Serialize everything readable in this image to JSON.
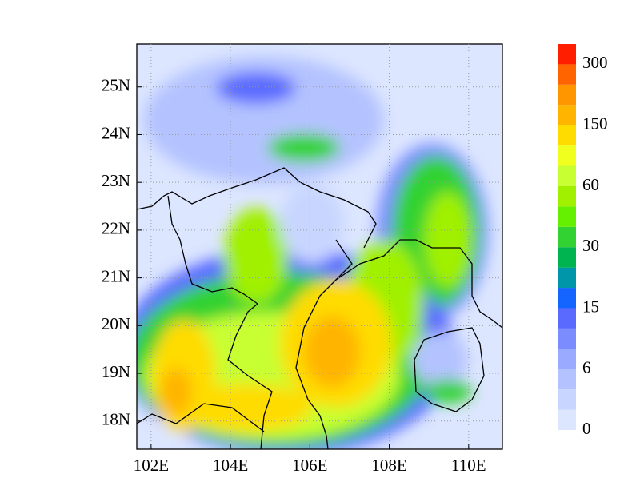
{
  "map": {
    "xaxis": {
      "lim": [
        101.64,
        110.85
      ],
      "ticks": [
        {
          "value": 102,
          "label": "102E"
        },
        {
          "value": 104,
          "label": "104E"
        },
        {
          "value": 106,
          "label": "106E"
        },
        {
          "value": 108,
          "label": "108E"
        },
        {
          "value": 110,
          "label": "110E"
        }
      ]
    },
    "yaxis": {
      "lim": [
        17.41,
        25.9
      ],
      "ticks": [
        {
          "value": 18,
          "label": "18N"
        },
        {
          "value": 19,
          "label": "19N"
        },
        {
          "value": 20,
          "label": "20N"
        },
        {
          "value": 21,
          "label": "21N"
        },
        {
          "value": 22,
          "label": "22N"
        },
        {
          "value": 23,
          "label": "23N"
        },
        {
          "value": 24,
          "label": "24N"
        },
        {
          "value": 25,
          "label": "25N"
        }
      ]
    },
    "grid": true
  },
  "colorbar": {
    "levels": [
      0,
      6,
      15,
      30,
      60,
      150,
      300
    ],
    "colors": [
      "#dce6ff",
      "#c8d6ff",
      "#b4c3ff",
      "#99aaff",
      "#7b8cff",
      "#5a6aff",
      "#1464ff",
      "#0096aa",
      "#00b450",
      "#32d232",
      "#64f000",
      "#a0f000",
      "#c8ff32",
      "#f0ff1e",
      "#ffdc00",
      "#ffb400",
      "#ff9600",
      "#ff6400",
      "#ff1e00"
    ]
  }
}
